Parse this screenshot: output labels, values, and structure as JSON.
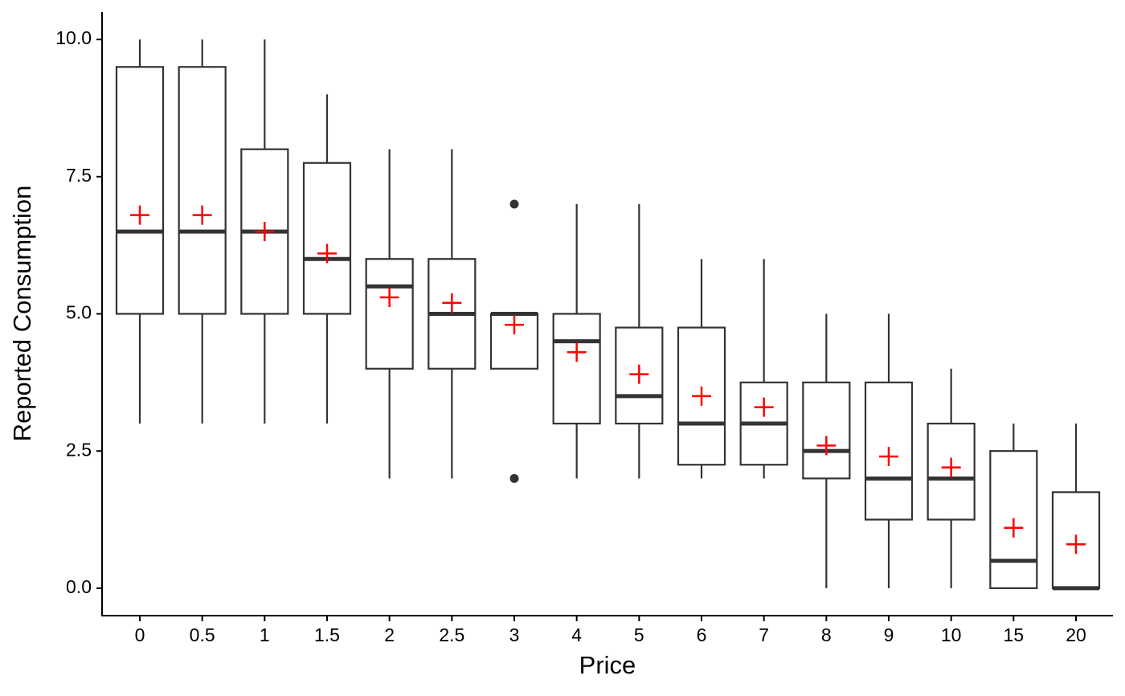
{
  "chart_data": {
    "type": "box",
    "x_label": "Price",
    "y_label": "Reported Consumption",
    "categories": [
      "0",
      "0.5",
      "1",
      "1.5",
      "2",
      "2.5",
      "3",
      "4",
      "5",
      "6",
      "7",
      "8",
      "9",
      "10",
      "15",
      "20"
    ],
    "min": [
      3,
      3,
      3,
      3,
      2,
      2,
      4,
      2,
      2,
      2,
      2,
      0,
      0,
      0,
      0,
      0
    ],
    "q1": [
      5,
      5,
      5,
      5,
      4,
      4,
      4,
      3,
      3,
      2.25,
      2.25,
      2,
      1.25,
      1.25,
      0,
      0
    ],
    "median": [
      6.5,
      6.5,
      6.5,
      6,
      5.5,
      5,
      5,
      4.5,
      3.5,
      3,
      3,
      2.5,
      2,
      2,
      0.5,
      0
    ],
    "q3": [
      9.5,
      9.5,
      8,
      7.75,
      6,
      6,
      5,
      5,
      4.75,
      4.75,
      3.75,
      3.75,
      3.75,
      3,
      2.5,
      1.75
    ],
    "max": [
      10,
      10,
      10,
      9,
      8,
      8,
      5,
      7,
      7,
      6,
      6,
      5,
      5,
      4,
      3,
      3
    ],
    "mean": [
      6.8,
      6.8,
      6.5,
      6.1,
      5.3,
      5.2,
      4.8,
      4.3,
      3.9,
      3.5,
      3.3,
      2.6,
      2.4,
      2.2,
      1.1,
      0.8
    ],
    "outliers": [
      [],
      [],
      [],
      [],
      [],
      [],
      [
        7,
        2
      ],
      [],
      [],
      [],
      [],
      [],
      [],
      [],
      [],
      []
    ],
    "box_color": "#333333",
    "mean_color": "#ff0000",
    "ylim": [
      -0.5,
      10.5
    ],
    "yticks": [
      {
        "value": 0,
        "label": "0.0"
      },
      2.5,
      {
        "value": 5,
        "label": "5.0"
      },
      7.5,
      {
        "value": 10,
        "label": "10.0"
      }
    ]
  }
}
